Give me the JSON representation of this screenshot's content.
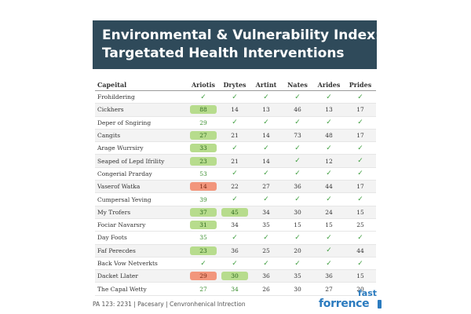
{
  "chart_data": {
    "type": "table",
    "title": "Environmental & Vulnerability Index:",
    "subtitle": "Targetated Health Interventions",
    "columns": [
      "Capeital",
      "Ariotis",
      "Drytes",
      "Artint",
      "Nates",
      "Arides",
      "Prides"
    ],
    "rows": [
      {
        "name": "Frohildering",
        "cells": [
          {
            "t": "check"
          },
          {
            "t": "check"
          },
          {
            "t": "check"
          },
          {
            "t": "check"
          },
          {
            "t": "check"
          },
          {
            "t": "check"
          }
        ]
      },
      {
        "name": "Cickhers",
        "cells": [
          {
            "t": "pill",
            "v": "88",
            "c": "green"
          },
          {
            "t": "num",
            "v": "14"
          },
          {
            "t": "num",
            "v": "13"
          },
          {
            "t": "num",
            "v": "46"
          },
          {
            "t": "num",
            "v": "13"
          },
          {
            "t": "num",
            "v": "17"
          }
        ]
      },
      {
        "name": "Deper of Sngiring",
        "cells": [
          {
            "t": "num",
            "v": "29",
            "c": "green"
          },
          {
            "t": "check"
          },
          {
            "t": "check"
          },
          {
            "t": "check"
          },
          {
            "t": "check"
          },
          {
            "t": "check"
          }
        ]
      },
      {
        "name": "Cangits",
        "cells": [
          {
            "t": "pill",
            "v": "27",
            "c": "green"
          },
          {
            "t": "num",
            "v": "21"
          },
          {
            "t": "num",
            "v": "14"
          },
          {
            "t": "num",
            "v": "73"
          },
          {
            "t": "num",
            "v": "48"
          },
          {
            "t": "num",
            "v": "17"
          }
        ]
      },
      {
        "name": "Arage Wurrsiry",
        "cells": [
          {
            "t": "pill",
            "v": "33",
            "c": "green"
          },
          {
            "t": "check"
          },
          {
            "t": "check"
          },
          {
            "t": "check"
          },
          {
            "t": "check"
          },
          {
            "t": "check"
          }
        ]
      },
      {
        "name": "Seaped of Lepd Ifrility",
        "cells": [
          {
            "t": "pill",
            "v": "23",
            "c": "green"
          },
          {
            "t": "num",
            "v": "21"
          },
          {
            "t": "num",
            "v": "14"
          },
          {
            "t": "check"
          },
          {
            "t": "num",
            "v": "12"
          },
          {
            "t": "check"
          }
        ]
      },
      {
        "name": "Congerial Prarday",
        "cells": [
          {
            "t": "num",
            "v": "53",
            "c": "green"
          },
          {
            "t": "check"
          },
          {
            "t": "check"
          },
          {
            "t": "check"
          },
          {
            "t": "check"
          },
          {
            "t": "check"
          }
        ]
      },
      {
        "name": "Vaserof Watka",
        "cells": [
          {
            "t": "pill",
            "v": "14",
            "c": "red"
          },
          {
            "t": "num",
            "v": "22"
          },
          {
            "t": "num",
            "v": "27"
          },
          {
            "t": "num",
            "v": "36"
          },
          {
            "t": "num",
            "v": "44"
          },
          {
            "t": "num",
            "v": "17"
          }
        ]
      },
      {
        "name": "Cumpersal Yeving",
        "cells": [
          {
            "t": "num",
            "v": "39",
            "c": "green"
          },
          {
            "t": "check"
          },
          {
            "t": "check"
          },
          {
            "t": "check"
          },
          {
            "t": "check"
          },
          {
            "t": "check"
          }
        ]
      },
      {
        "name": "My Trofers",
        "cells": [
          {
            "t": "pill",
            "v": "37",
            "c": "green"
          },
          {
            "t": "pill",
            "v": "45",
            "c": "green"
          },
          {
            "t": "num",
            "v": "34"
          },
          {
            "t": "num",
            "v": "30"
          },
          {
            "t": "num",
            "v": "24"
          },
          {
            "t": "num",
            "v": "15"
          }
        ]
      },
      {
        "name": "Fociar Navarsry",
        "cells": [
          {
            "t": "pill",
            "v": "31",
            "c": "green"
          },
          {
            "t": "num",
            "v": "34"
          },
          {
            "t": "num",
            "v": "35"
          },
          {
            "t": "num",
            "v": "15"
          },
          {
            "t": "num",
            "v": "15"
          },
          {
            "t": "num",
            "v": "25"
          }
        ]
      },
      {
        "name": "Day Foots",
        "cells": [
          {
            "t": "num",
            "v": "35",
            "c": "green"
          },
          {
            "t": "check"
          },
          {
            "t": "check"
          },
          {
            "t": "check"
          },
          {
            "t": "check"
          },
          {
            "t": "check"
          }
        ]
      },
      {
        "name": "Faf Perecdes",
        "cells": [
          {
            "t": "pill",
            "v": "23",
            "c": "green"
          },
          {
            "t": "num",
            "v": "36"
          },
          {
            "t": "num",
            "v": "25"
          },
          {
            "t": "num",
            "v": "20"
          },
          {
            "t": "check"
          },
          {
            "t": "num",
            "v": "44"
          }
        ]
      },
      {
        "name": "Back Vow Netverkts",
        "cells": [
          {
            "t": "check"
          },
          {
            "t": "check"
          },
          {
            "t": "check"
          },
          {
            "t": "check"
          },
          {
            "t": "check"
          },
          {
            "t": "check"
          }
        ]
      },
      {
        "name": "Dacket Llater",
        "cells": [
          {
            "t": "pill",
            "v": "29",
            "c": "red"
          },
          {
            "t": "pill",
            "v": "30",
            "c": "green"
          },
          {
            "t": "num",
            "v": "36"
          },
          {
            "t": "num",
            "v": "35"
          },
          {
            "t": "num",
            "v": "36"
          },
          {
            "t": "num",
            "v": "15"
          }
        ]
      },
      {
        "name": "The Capal Wetty",
        "cells": [
          {
            "t": "num",
            "v": "27",
            "c": "green"
          },
          {
            "t": "num",
            "v": "34",
            "c": "green"
          },
          {
            "t": "num",
            "v": "26"
          },
          {
            "t": "num",
            "v": "30"
          },
          {
            "t": "num",
            "v": "27"
          },
          {
            "t": "num",
            "v": "20"
          }
        ]
      }
    ]
  },
  "footer": {
    "text": "PA 123: 2231 | Pacesary | Cenvronhenical Intrection"
  },
  "logo": {
    "line1": "fast",
    "line2": "forrence"
  },
  "icons": {
    "check": "check-icon"
  },
  "colors": {
    "header_bg": "#2f4a5a",
    "pill_green": "#b7dc8d",
    "pill_red": "#f2967c",
    "check": "#3f9e3f",
    "logo": "#2b7bbf"
  }
}
